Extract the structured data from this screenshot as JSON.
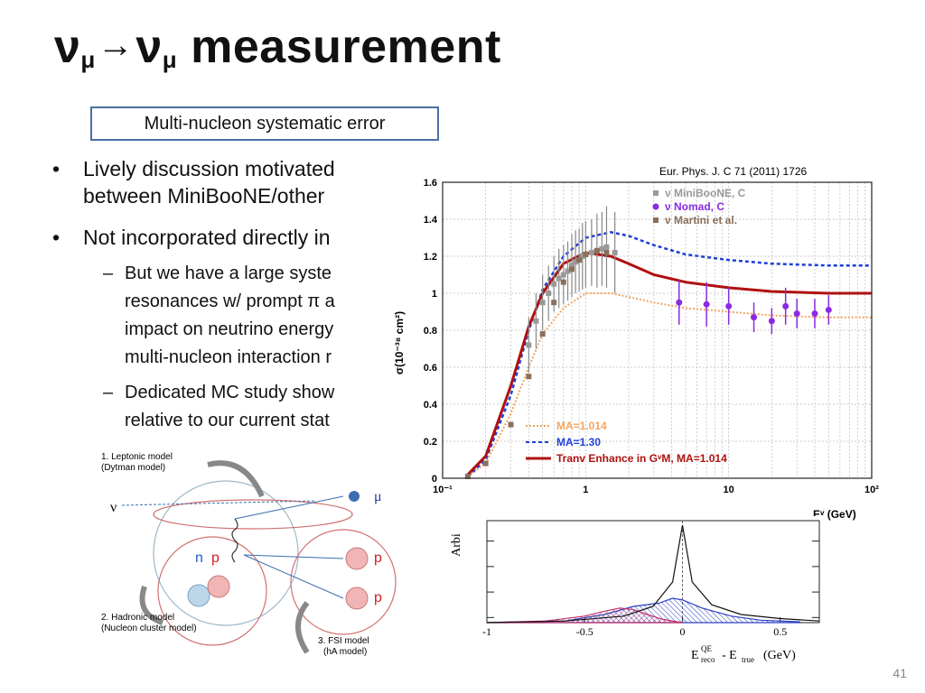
{
  "slide": {
    "title": {
      "nu1": "ν",
      "sub1": "μ",
      "arrow": "→",
      "nu2": "ν",
      "sub2": "μ",
      "rest": " measurement"
    },
    "callout": "Multi-nucleon systematic error",
    "bullets": [
      {
        "lines": [
          "Lively discussion motivated",
          "between MiniBooNE/other"
        ]
      },
      {
        "lines": [
          "Not incorporated directly in"
        ]
      }
    ],
    "subbullets": [
      {
        "lines": [
          "But we have a large syste",
          "resonances w/ prompt π a",
          "impact on neutrino energy",
          "multi-nucleon interaction r"
        ]
      },
      {
        "lines": [
          "Dedicated MC study show",
          "relative to our current stat"
        ]
      }
    ],
    "bullet_char": "•",
    "dash_char": "–",
    "slide_number": "41"
  },
  "diagram": {
    "leptonic": [
      "1. Leptonic model",
      "(Dytman model)"
    ],
    "hadronic": [
      "2. Hadronic model",
      "(Nucleon cluster model)"
    ],
    "fsi": [
      "3. FSI model",
      "(hA model)"
    ],
    "nu": "ν",
    "mu": "μ",
    "n": "n",
    "p": "p"
  },
  "chart_data": [
    {
      "type": "line",
      "citation": "Eur. Phys. J. C 71 (2011) 1726",
      "ylabel": "σ(10⁻³⁸ cm²)",
      "xlabel": "Eᵛ (GeV)",
      "xscale": "log",
      "xlim": [
        0.1,
        100
      ],
      "ylim": [
        0,
        1.6
      ],
      "yticks": [
        "0",
        "0.2",
        "0.4",
        "0.6",
        "0.8",
        "1",
        "1.2",
        "1.4",
        "1.6"
      ],
      "xticks": [
        "10⁻¹",
        "1",
        "10",
        "10²"
      ],
      "grid": true,
      "legend_top": [
        {
          "name": "ν MiniBooNE, C",
          "color": "#999999",
          "marker": "star"
        },
        {
          "name": "ν Nomad, C",
          "color": "#8a2be2",
          "marker": "circle"
        },
        {
          "name": "ν Martini et al.",
          "color": "#8b6f5a",
          "marker": "square"
        }
      ],
      "legend_bottom": [
        {
          "name": "MA=1.014",
          "color": "#f4a460",
          "style": "dotted"
        },
        {
          "name": "MA=1.30",
          "color": "#1e3fd8",
          "style": "dashed"
        },
        {
          "name": "Tranv Enhance in GᵛM, MA=1.014",
          "color": "#b01010",
          "style": "solid"
        }
      ],
      "series": [
        {
          "name": "MA=1.014",
          "x": [
            0.15,
            0.2,
            0.3,
            0.4,
            0.5,
            0.7,
            1,
            1.5,
            2,
            3,
            5,
            10,
            20,
            50,
            100
          ],
          "y": [
            0.01,
            0.08,
            0.35,
            0.6,
            0.78,
            0.92,
            1.0,
            1.0,
            0.98,
            0.95,
            0.92,
            0.9,
            0.88,
            0.87,
            0.87
          ]
        },
        {
          "name": "MA=1.30",
          "x": [
            0.15,
            0.2,
            0.3,
            0.4,
            0.5,
            0.7,
            1,
            1.5,
            2,
            3,
            5,
            10,
            20,
            50,
            100
          ],
          "y": [
            0.01,
            0.1,
            0.45,
            0.8,
            1.02,
            1.2,
            1.3,
            1.33,
            1.31,
            1.26,
            1.21,
            1.18,
            1.16,
            1.15,
            1.15
          ]
        },
        {
          "name": "Tranv Enhance in GᵛM, MA=1.014",
          "x": [
            0.15,
            0.2,
            0.3,
            0.4,
            0.5,
            0.7,
            1,
            1.5,
            2,
            3,
            5,
            10,
            20,
            50,
            100
          ],
          "y": [
            0.02,
            0.12,
            0.5,
            0.82,
            1.0,
            1.16,
            1.22,
            1.2,
            1.16,
            1.1,
            1.06,
            1.03,
            1.01,
            1.0,
            1.0
          ]
        },
        {
          "name": "MiniBooNE, C",
          "x": [
            0.4,
            0.45,
            0.5,
            0.55,
            0.6,
            0.65,
            0.7,
            0.75,
            0.8,
            0.85,
            0.9,
            0.95,
            1.0,
            1.1,
            1.2,
            1.3,
            1.4,
            1.6
          ],
          "y": [
            0.72,
            0.85,
            0.95,
            1.0,
            1.05,
            1.08,
            1.1,
            1.12,
            1.15,
            1.17,
            1.18,
            1.2,
            1.21,
            1.22,
            1.23,
            1.24,
            1.25,
            1.22
          ],
          "err": [
            0.15,
            0.15,
            0.15,
            0.15,
            0.15,
            0.16,
            0.16,
            0.16,
            0.17,
            0.17,
            0.17,
            0.18,
            0.18,
            0.18,
            0.2,
            0.2,
            0.22,
            0.22
          ]
        },
        {
          "name": "Nomad, C",
          "x": [
            4.5,
            7,
            10,
            15,
            20,
            25,
            30,
            40,
            50
          ],
          "y": [
            0.95,
            0.94,
            0.93,
            0.87,
            0.85,
            0.93,
            0.89,
            0.89,
            0.91
          ],
          "err": [
            0.12,
            0.12,
            0.1,
            0.08,
            0.07,
            0.1,
            0.08,
            0.08,
            0.08
          ]
        },
        {
          "name": "Martini et al.",
          "x": [
            0.15,
            0.2,
            0.3,
            0.4,
            0.5,
            0.6,
            0.7,
            0.8,
            0.9,
            1.0,
            1.2,
            1.4
          ],
          "y": [
            0.01,
            0.08,
            0.29,
            0.55,
            0.78,
            0.95,
            1.06,
            1.13,
            1.18,
            1.21,
            1.23,
            1.22
          ]
        }
      ]
    },
    {
      "type": "area",
      "ylabel": "Arbi",
      "xlabel": "E_reco^QE - E_true (GeV)",
      "xlim": [
        -1,
        0.7
      ],
      "xticks": [
        "-1",
        "-0.5",
        "0",
        "0.5"
      ],
      "series": [
        {
          "name": "black",
          "x": [
            -1,
            -0.6,
            -0.3,
            -0.15,
            -0.05,
            0,
            0.05,
            0.15,
            0.3,
            0.5,
            0.7
          ],
          "y": [
            0,
            0.02,
            0.08,
            0.2,
            0.5,
            1.2,
            0.5,
            0.22,
            0.1,
            0.05,
            0.02
          ]
        },
        {
          "name": "blue",
          "x": [
            -1,
            -0.6,
            -0.4,
            -0.25,
            -0.12,
            -0.05,
            0,
            0.1,
            0.25,
            0.4,
            0.6
          ],
          "y": [
            0,
            0.02,
            0.1,
            0.2,
            0.24,
            0.3,
            0.28,
            0.18,
            0.08,
            0.03,
            0.01
          ]
        },
        {
          "name": "red",
          "x": [
            -1,
            -0.7,
            -0.5,
            -0.4,
            -0.32,
            -0.25,
            -0.18,
            -0.1,
            0
          ],
          "y": [
            0,
            0.02,
            0.08,
            0.14,
            0.18,
            0.16,
            0.1,
            0.04,
            0
          ]
        }
      ]
    }
  ]
}
